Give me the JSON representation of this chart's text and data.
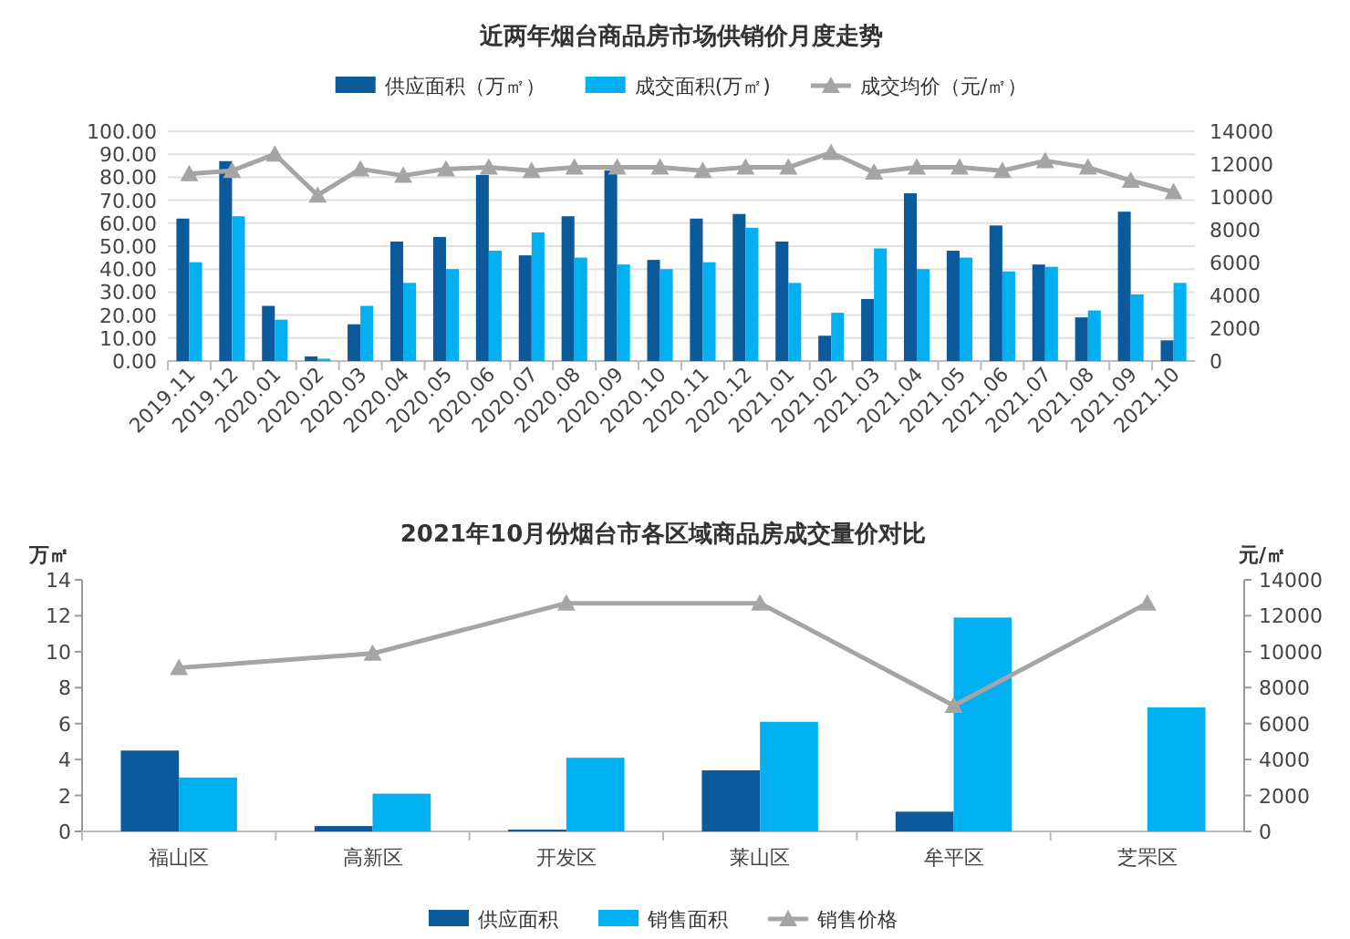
{
  "chart_data": [
    {
      "type": "bar",
      "title": "近两年烟台商品房市场供销价月度走势",
      "categories": [
        "2019.11",
        "2019.12",
        "2020.01",
        "2020.02",
        "2020.03",
        "2020.04",
        "2020.05",
        "2020.06",
        "2020.07",
        "2020.08",
        "2020.09",
        "2020.10",
        "2020.11",
        "2020.12",
        "2021.01",
        "2021.02",
        "2021.03",
        "2021.04",
        "2021.05",
        "2021.06",
        "2021.07",
        "2021.08",
        "2021.09",
        "2021.10"
      ],
      "series": [
        {
          "name": "供应面积（万㎡）",
          "color": "#0a5a9c",
          "values": [
            62,
            87,
            24,
            2,
            16,
            52,
            54,
            81,
            46,
            63,
            83,
            44,
            62,
            64,
            52,
            11,
            27,
            73,
            48,
            59,
            42,
            19,
            65,
            9
          ]
        },
        {
          "name": "成交面积(万㎡)",
          "color": "#00b0f0",
          "values": [
            43,
            63,
            18,
            1,
            24,
            34,
            40,
            48,
            56,
            45,
            42,
            40,
            43,
            58,
            34,
            21,
            49,
            40,
            45,
            39,
            41,
            22,
            29,
            34
          ]
        },
        {
          "name": "成交均价（元/㎡）",
          "type": "line",
          "axis": "y2",
          "color": "#a5a5a5",
          "values": [
            11400,
            11600,
            12600,
            10100,
            11700,
            11300,
            11700,
            11800,
            11600,
            11800,
            11800,
            11800,
            11600,
            11800,
            11800,
            12700,
            11500,
            11800,
            11800,
            11600,
            12200,
            11800,
            11000,
            10300
          ]
        }
      ],
      "ylim": [
        0,
        100
      ],
      "yticks": [
        {
          "value": 0,
          "label": "0.00"
        },
        {
          "value": 10,
          "label": "10.00"
        },
        {
          "value": 20,
          "label": "20.00"
        },
        {
          "value": 30,
          "label": "30.00"
        },
        {
          "value": 40,
          "label": "40.00"
        },
        {
          "value": 50,
          "label": "50.00"
        },
        {
          "value": 60,
          "label": "60.00"
        },
        {
          "value": 70,
          "label": "70.00"
        },
        {
          "value": 80,
          "label": "80.00"
        },
        {
          "value": 90,
          "label": "90.00"
        },
        {
          "value": 100,
          "label": "100.00"
        }
      ],
      "y2lim": [
        0,
        14000
      ],
      "y2ticks": [
        0,
        2000,
        4000,
        6000,
        8000,
        10000,
        12000,
        14000
      ],
      "grid": "y",
      "legend": "top",
      "marker": "triangle"
    },
    {
      "type": "bar",
      "title": "2021年10月份烟台市各区域商品房成交量价对比",
      "ylabel": "万㎡",
      "y2label": "元/㎡",
      "categories": [
        "福山区",
        "高新区",
        "开发区",
        "莱山区",
        "牟平区",
        "芝罘区"
      ],
      "series": [
        {
          "name": "供应面积",
          "color": "#0a5a9c",
          "values": [
            4.5,
            0.3,
            0.1,
            3.4,
            1.1,
            null
          ]
        },
        {
          "name": "销售面积",
          "color": "#00b0f0",
          "values": [
            3.0,
            2.1,
            4.1,
            6.1,
            11.9,
            6.9
          ]
        },
        {
          "name": "销售价格",
          "type": "line",
          "axis": "y2",
          "color": "#a5a5a5",
          "values": [
            9100,
            9900,
            12700,
            12700,
            7000,
            12700
          ]
        }
      ],
      "ylim": [
        0,
        14
      ],
      "yticks": [
        0,
        2,
        4,
        6,
        8,
        10,
        12,
        14
      ],
      "y2lim": [
        0,
        14000
      ],
      "y2ticks": [
        0,
        2000,
        4000,
        6000,
        8000,
        10000,
        12000,
        14000
      ],
      "legend": "bottom",
      "marker": "triangle"
    }
  ]
}
